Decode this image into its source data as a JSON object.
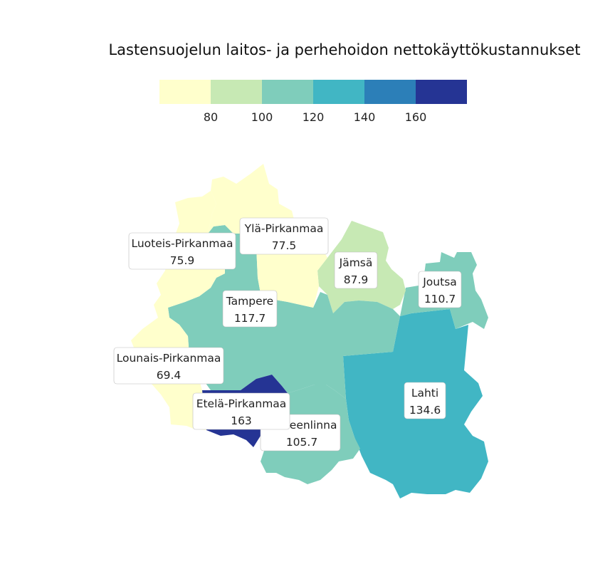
{
  "title": "Lastensuojelun laitos- ja perhehoidon nettokäyttökustannukset",
  "legend": {
    "colors": [
      "#ffffcc",
      "#c7e9b4",
      "#7fcdbb",
      "#41b6c4",
      "#2c7fb8",
      "#253494"
    ],
    "ticks": [
      "80",
      "100",
      "120",
      "140",
      "160"
    ]
  },
  "chart_data": {
    "type": "choropleth",
    "title": "Lastensuojelun laitos- ja perhehoidon nettokäyttökustannukset",
    "bins": [
      60,
      80,
      100,
      120,
      140,
      160,
      180
    ],
    "regions": [
      {
        "name": "Luoteis-Pirkanmaa",
        "value_label": "75.9",
        "value": 75.9
      },
      {
        "name": "Ylä-Pirkanmaa",
        "value_label": "77.5",
        "value": 77.5
      },
      {
        "name": "Jämsä",
        "value_label": "87.9",
        "value": 87.9
      },
      {
        "name": "Joutsa",
        "value_label": "110.7",
        "value": 110.7
      },
      {
        "name": "Tampere",
        "value_label": "117.7",
        "value": 117.7
      },
      {
        "name": "Lounais-Pirkanmaa",
        "value_label": "69.4",
        "value": 69.4
      },
      {
        "name": "Etelä-Pirkanmaa",
        "value_label": "163",
        "value": 163
      },
      {
        "name": "Hämeenlinna",
        "value_label": "105.7",
        "value": 105.7
      },
      {
        "name": "Lahti",
        "value_label": "134.6",
        "value": 134.6
      }
    ]
  }
}
